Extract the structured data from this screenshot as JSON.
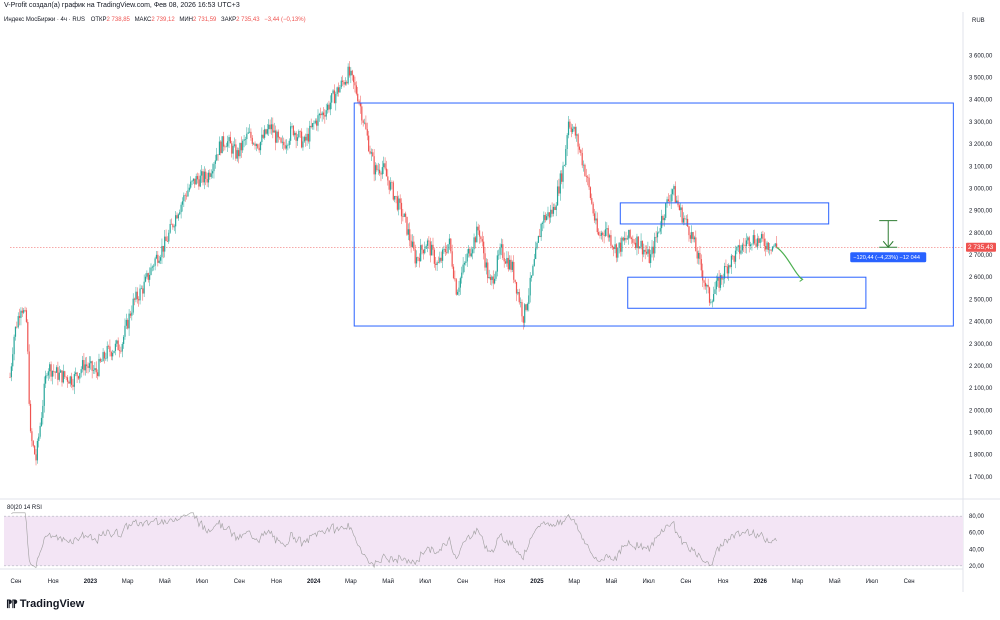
{
  "caption": "V-Profit создал(а) график на TradingView.com, Фев 08, 2026 16:53 UTC+3",
  "legend": {
    "symbol": "Индекс МосБиржи · 4ч · RUS",
    "open_label": "ОТКР",
    "open": "2 738,85",
    "high_label": "МАКС",
    "high": "2 739,12",
    "low_label": "МИН",
    "low": "2 731,59",
    "close_label": "ЗАКР",
    "close": "2 735,43",
    "change": "−3,44 (−0,13%)"
  },
  "currency": "RUB",
  "price_tag": "2 735,43",
  "measure_label": "−120,44 (−4,23%) −12 044",
  "rsi_label": "80|20 14 RSI",
  "brand": "TradingView",
  "colors": {
    "up": "#26a69a",
    "down": "#ef5350",
    "box": "#2962ff",
    "rsi": "#9e9e9e",
    "rsi_fill": "#f3e5f5",
    "measure": "#2e7d32",
    "price_tag": "#ef5350",
    "label_bg": "#2962ff"
  },
  "chart_data": [
    {
      "type": "candlestick",
      "y_axis_ticks": [
        "3 600,00",
        "3 500,00",
        "3 400,00",
        "3 300,00",
        "3 200,00",
        "3 100,00",
        "3 000,00",
        "2 900,00",
        "2 800,00",
        "2 700,00",
        "2 600,00",
        "2 500,00",
        "2 400,00",
        "2 300,00",
        "2 200,00",
        "2 100,00",
        "2 000,00",
        "1 900,00",
        "1 800,00",
        "1 700,00"
      ],
      "ylim": [
        1650,
        3660
      ],
      "x_axis_ticks": [
        "Сен",
        "Ноя",
        "2023",
        "Мар",
        "Май",
        "Июл",
        "Сен",
        "Ноя",
        "2024",
        "Мар",
        "Май",
        "Июл",
        "Сен",
        "Ноя",
        "2025",
        "Мар",
        "Май",
        "Июл",
        "Сен",
        "Ноя",
        "2026",
        "Мар",
        "Май",
        "Июл",
        "Сен"
      ],
      "x_tick_index": [
        0,
        1,
        2,
        3,
        4,
        5,
        6,
        7,
        8,
        9,
        10,
        11,
        12,
        13,
        14,
        15,
        16,
        17,
        18,
        19,
        20,
        21,
        22,
        23,
        24
      ],
      "last_data_index": 20.6,
      "x_max_index": 25.3,
      "path": [
        [
          0.0,
          2150
        ],
        [
          0.1,
          2330
        ],
        [
          0.3,
          2480
        ],
        [
          0.45,
          2390
        ],
        [
          0.55,
          1880
        ],
        [
          0.7,
          1780
        ],
        [
          0.9,
          2060
        ],
        [
          1.0,
          2200
        ],
        [
          1.3,
          2160
        ],
        [
          1.7,
          2140
        ],
        [
          2.0,
          2210
        ],
        [
          2.3,
          2170
        ],
        [
          2.6,
          2260
        ],
        [
          3.0,
          2300
        ],
        [
          3.3,
          2480
        ],
        [
          3.6,
          2560
        ],
        [
          3.9,
          2680
        ],
        [
          4.2,
          2760
        ],
        [
          4.5,
          2900
        ],
        [
          4.8,
          3000
        ],
        [
          5.0,
          3040
        ],
        [
          5.3,
          3050
        ],
        [
          5.6,
          3180
        ],
        [
          5.8,
          3220
        ],
        [
          6.1,
          3150
        ],
        [
          6.4,
          3240
        ],
        [
          6.7,
          3200
        ],
        [
          7.0,
          3280
        ],
        [
          7.3,
          3180
        ],
        [
          7.6,
          3270
        ],
        [
          7.9,
          3200
        ],
        [
          8.2,
          3300
        ],
        [
          8.5,
          3360
        ],
        [
          8.8,
          3440
        ],
        [
          9.1,
          3520
        ],
        [
          9.35,
          3420
        ],
        [
          9.6,
          3230
        ],
        [
          9.8,
          3080
        ],
        [
          10.0,
          3100
        ],
        [
          10.3,
          2980
        ],
        [
          10.6,
          2860
        ],
        [
          10.9,
          2680
        ],
        [
          11.2,
          2760
        ],
        [
          11.5,
          2650
        ],
        [
          11.8,
          2760
        ],
        [
          12.0,
          2540
        ],
        [
          12.3,
          2700
        ],
        [
          12.6,
          2820
        ],
        [
          12.9,
          2560
        ],
        [
          13.2,
          2720
        ],
        [
          13.5,
          2640
        ],
        [
          13.8,
          2420
        ],
        [
          14.0,
          2580
        ],
        [
          14.3,
          2860
        ],
        [
          14.6,
          2900
        ],
        [
          14.9,
          3120
        ],
        [
          15.0,
          3310
        ],
        [
          15.2,
          3240
        ],
        [
          15.5,
          3050
        ],
        [
          15.8,
          2780
        ],
        [
          16.0,
          2820
        ],
        [
          16.3,
          2720
        ],
        [
          16.6,
          2780
        ],
        [
          16.9,
          2760
        ],
        [
          17.2,
          2680
        ],
        [
          17.5,
          2860
        ],
        [
          17.8,
          3000
        ],
        [
          18.0,
          2900
        ],
        [
          18.3,
          2800
        ],
        [
          18.5,
          2680
        ],
        [
          18.8,
          2500
        ],
        [
          19.0,
          2560
        ],
        [
          19.3,
          2660
        ],
        [
          19.6,
          2720
        ],
        [
          19.9,
          2780
        ],
        [
          20.2,
          2760
        ],
        [
          20.6,
          2735
        ]
      ],
      "rectangles": [
        {
          "x0": 9.25,
          "x1": 25.35,
          "y0": 2380,
          "y1": 3385
        },
        {
          "x0": 16.4,
          "x1": 22.0,
          "y0": 2840,
          "y1": 2935
        },
        {
          "x0": 16.6,
          "x1": 23.0,
          "y0": 2460,
          "y1": 2600
        }
      ],
      "measure_arrow": {
        "x": 23.6,
        "from": 2855,
        "to": 2735
      },
      "projection": [
        [
          20.6,
          2735
        ],
        [
          20.9,
          2700
        ],
        [
          21.1,
          2610
        ],
        [
          21.3,
          2590
        ]
      ]
    },
    {
      "type": "line",
      "name": "RSI 14",
      "ylim": [
        15,
        85
      ],
      "band": [
        20,
        80
      ],
      "y_axis_ticks": [
        "80,00",
        "60,00",
        "40,00",
        "20,00"
      ],
      "y_tick_values": [
        80,
        60,
        40,
        20
      ]
    }
  ]
}
